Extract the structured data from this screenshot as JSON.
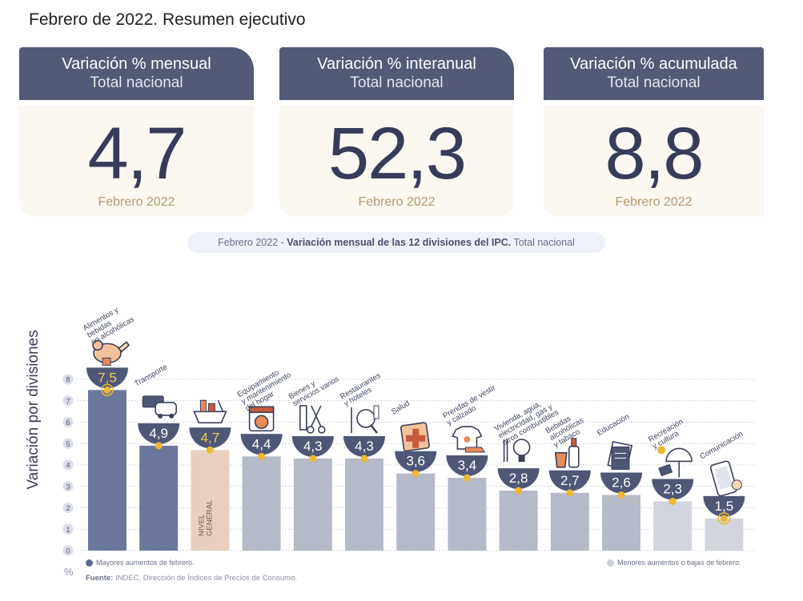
{
  "page_title": "Febrero de 2022. Resumen ejecutivo",
  "cards": [
    {
      "title": "Variación % mensual",
      "subtitle": "Total nacional",
      "value": "4,7",
      "period": "Febrero 2022"
    },
    {
      "title": "Variación % interanual",
      "subtitle": "Total nacional",
      "value": "52,3",
      "period": "Febrero 2022"
    },
    {
      "title": "Variación % acumulada",
      "subtitle": "Total nacional",
      "value": "8,8",
      "period": "Febrero 2022"
    }
  ],
  "chart_subtitle": {
    "prefix": "Febrero 2022 - ",
    "bold": "Variación mensual de las 12 divisiones del IPC.",
    "suffix": " Total nacional"
  },
  "chart_data": {
    "type": "bar",
    "title": "",
    "ylabel": "Variación por divisiones",
    "unit": "%",
    "ylim": [
      0,
      8
    ],
    "yticks": [
      0,
      1,
      2,
      3,
      4,
      5,
      6,
      7,
      8
    ],
    "grid": true,
    "categories": [
      "Alimentos y bebidas no alcohólicas",
      "Transporte",
      "Nivel general",
      "Equipamiento y mantenimiento del hogar",
      "Bienes y servicios varios",
      "Restaurantes y hoteles",
      "Salud",
      "Prendas de vestir y calzado",
      "Vivienda, agua, electricidad, gas y otros combustibles",
      "Bebidas alcohólicas y tabaco",
      "Educación",
      "Recreación y cultura",
      "Comunicación"
    ],
    "values": [
      7.5,
      4.9,
      4.7,
      4.4,
      4.3,
      4.3,
      3.6,
      3.4,
      2.8,
      2.7,
      2.6,
      2.3,
      1.5
    ],
    "value_labels": [
      "7,5",
      "4,9",
      "4,7",
      "4,4",
      "4,3",
      "4,3",
      "3,6",
      "3,4",
      "2,8",
      "2,7",
      "2,6",
      "2,3",
      "1,5"
    ],
    "bar_labels": [
      [
        "Alimentos y",
        "bebidas",
        "no alcohólicas"
      ],
      [
        "Transporte"
      ],
      [],
      [
        "Equipamiento",
        "y mantenimiento",
        "del hogar"
      ],
      [
        "Bienes y",
        "servicios varios"
      ],
      [
        "Restaurantes",
        "y hoteles"
      ],
      [
        "Salud"
      ],
      [
        "Prendas de vestir",
        "y calzado"
      ],
      [
        "Vivienda, agua,",
        "electricidad, gas y",
        "otros combustibles"
      ],
      [
        "Bebidas",
        "alcohólicas",
        "y tabaco"
      ],
      [
        "Educación"
      ],
      [
        "Recreación",
        "y cultura"
      ],
      [
        "Comunicación"
      ]
    ],
    "general_label": [
      "NIVEL",
      "GENERAL"
    ],
    "groups": [
      "high",
      "high",
      "general",
      "low",
      "low",
      "low",
      "low",
      "low",
      "low",
      "low",
      "low",
      "low",
      "low"
    ],
    "icons": [
      "chicken-icon",
      "bus-card-icon",
      "shopping-basket-icon",
      "washing-machine-icon",
      "scissors-comb-icon",
      "plate-cutlery-icon",
      "medical-cross-icon",
      "tshirt-shoe-icon",
      "lightbulb-icon",
      "bottle-glass-icon",
      "book-icon",
      "umbrella-sun-icon",
      "smartphone-icon"
    ],
    "colors": {
      "high": "#6b779c",
      "general": "#e8cfc0",
      "low": "#b4bac8",
      "lower": "#d2d5dd",
      "badge": "#4f5777",
      "dot": "#eab832"
    },
    "legend": {
      "high": "Mayores aumentos de febrero.",
      "low": "Menores aumentos o bajas de febrero.",
      "high_color": "#5c6a92",
      "low_color": "#cdd1da"
    }
  },
  "source": {
    "label": "Fuente:",
    "text": " INDEC, Dirección de Índices de Precios de Consumo."
  }
}
